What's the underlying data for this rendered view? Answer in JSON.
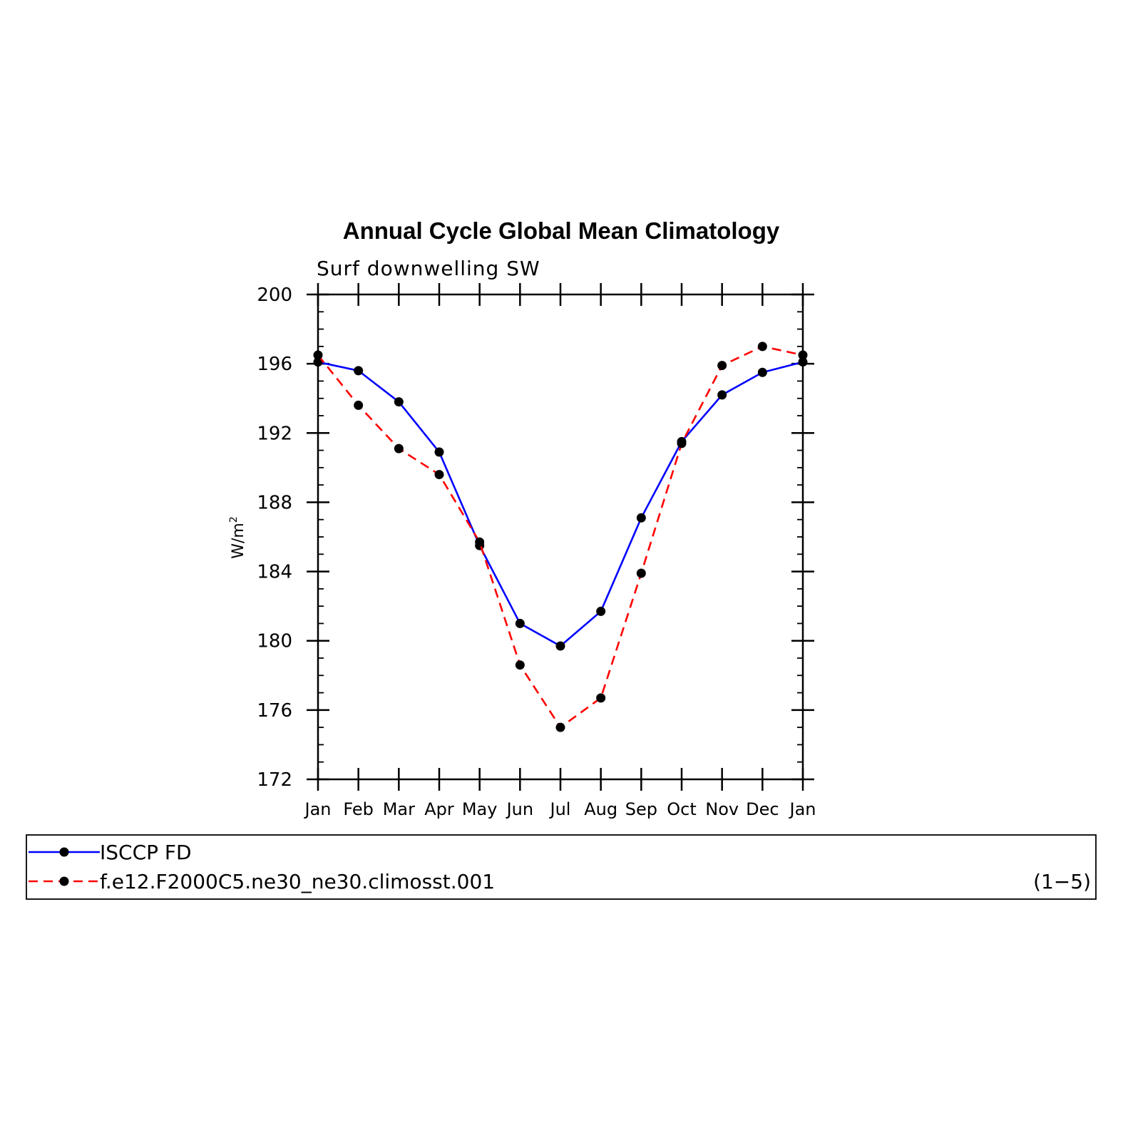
{
  "chart_data": {
    "type": "line",
    "title": "Annual Cycle Global Mean Climatology",
    "subtitle": "Surf downwelling SW",
    "ylabel": "W/m",
    "ylabel_sup": "2",
    "xlabel": "",
    "categories": [
      "Jan",
      "Feb",
      "Mar",
      "Apr",
      "May",
      "Jun",
      "Jul",
      "Aug",
      "Sep",
      "Oct",
      "Nov",
      "Dec",
      "Jan"
    ],
    "ylim": [
      172,
      200
    ],
    "yticks": [
      "172",
      "176",
      "180",
      "184",
      "188",
      "192",
      "196",
      "200"
    ],
    "grid": false,
    "legend_placement": "bottom",
    "series": [
      {
        "name": "ISCCP FD",
        "color": "#0000ff",
        "dash": "solid",
        "marker": "circle",
        "values": [
          196.1,
          195.6,
          193.8,
          190.9,
          185.5,
          181.0,
          179.7,
          181.7,
          187.1,
          191.5,
          194.2,
          195.5,
          196.1
        ]
      },
      {
        "name": "f.e12.F2000C5.ne30_ne30.climosst.001",
        "color": "#ff0000",
        "dash": "dashed",
        "marker": "circle",
        "values": [
          196.5,
          193.6,
          191.1,
          189.6,
          185.7,
          178.6,
          175.0,
          176.7,
          183.9,
          191.4,
          195.9,
          197.0,
          196.5
        ]
      }
    ],
    "legend_note": "(1−5)"
  }
}
